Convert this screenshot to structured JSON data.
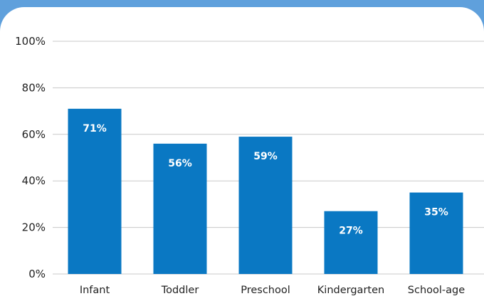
{
  "chart_data": {
    "type": "bar",
    "categories": [
      "Infant",
      "Toddler",
      "Preschool",
      "Kindergarten",
      "School-age"
    ],
    "values": [
      71,
      56,
      59,
      27,
      35
    ],
    "data_labels": [
      "71%",
      "56%",
      "59%",
      "27%",
      "35%"
    ],
    "title": "",
    "xlabel": "",
    "ylabel": "",
    "ylim": [
      0,
      100
    ],
    "yticks": [
      "0%",
      "20%",
      "40%",
      "60%",
      "80%",
      "100%"
    ],
    "grid": true,
    "bar_color": "#0a78c3",
    "grid_color": "#c8c8c8"
  },
  "colors": {
    "background": "#5fa0dc",
    "panel": "#ffffff"
  }
}
